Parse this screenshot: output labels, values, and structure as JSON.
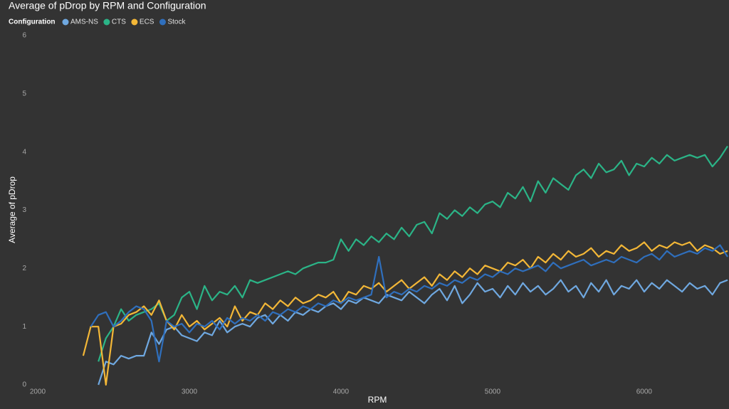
{
  "chart_data": {
    "type": "line",
    "title": "Average of pDrop by RPM and Configuration",
    "legend_title": "Configuration",
    "x_label": "RPM",
    "y_label": "Average of pDrop",
    "xlim": [
      2000,
      6550
    ],
    "xticks": [
      2000,
      3000,
      4000,
      5000,
      6000
    ],
    "ylim": [
      0,
      6
    ],
    "yticks": [
      0,
      1,
      2,
      3,
      4,
      5,
      6
    ],
    "grid": false,
    "x": [
      2300,
      2350,
      2400,
      2450,
      2500,
      2550,
      2600,
      2650,
      2700,
      2750,
      2800,
      2850,
      2900,
      2950,
      3000,
      3050,
      3100,
      3150,
      3200,
      3250,
      3300,
      3350,
      3400,
      3450,
      3500,
      3550,
      3600,
      3650,
      3700,
      3750,
      3800,
      3850,
      3900,
      3950,
      4000,
      4050,
      4100,
      4150,
      4200,
      4250,
      4300,
      4350,
      4400,
      4450,
      4500,
      4550,
      4600,
      4650,
      4700,
      4750,
      4800,
      4850,
      4900,
      4950,
      5000,
      5050,
      5100,
      5150,
      5200,
      5250,
      5300,
      5350,
      5400,
      5450,
      5500,
      5550,
      5600,
      5650,
      5700,
      5750,
      5800,
      5850,
      5900,
      5950,
      6000,
      6050,
      6100,
      6150,
      6200,
      6250,
      6300,
      6350,
      6400,
      6450,
      6500,
      6550
    ],
    "series": [
      {
        "name": "AMS-NS",
        "color": "#6fa8e0",
        "values": [
          null,
          null,
          0.0,
          0.4,
          0.35,
          0.5,
          0.45,
          0.5,
          0.5,
          0.9,
          0.7,
          0.95,
          1.0,
          0.85,
          0.8,
          0.75,
          0.9,
          0.85,
          1.1,
          0.9,
          1.0,
          1.05,
          1.0,
          1.15,
          1.2,
          1.05,
          1.2,
          1.1,
          1.25,
          1.2,
          1.3,
          1.25,
          1.35,
          1.4,
          1.3,
          1.45,
          1.4,
          1.5,
          1.45,
          1.4,
          1.55,
          1.5,
          1.45,
          1.6,
          1.5,
          1.4,
          1.55,
          1.65,
          1.45,
          1.7,
          1.4,
          1.55,
          1.75,
          1.6,
          1.65,
          1.5,
          1.7,
          1.55,
          1.75,
          1.6,
          1.7,
          1.55,
          1.65,
          1.8,
          1.6,
          1.7,
          1.5,
          1.75,
          1.6,
          1.8,
          1.55,
          1.7,
          1.65,
          1.8,
          1.6,
          1.75,
          1.65,
          1.8,
          1.7,
          1.6,
          1.75,
          1.65,
          1.7,
          1.55,
          1.75,
          1.8
        ]
      },
      {
        "name": "CTS",
        "color": "#2bb487",
        "values": [
          null,
          null,
          0.4,
          0.8,
          1.0,
          1.3,
          1.1,
          1.2,
          1.25,
          1.3,
          1.4,
          1.1,
          1.2,
          1.5,
          1.6,
          1.3,
          1.7,
          1.45,
          1.6,
          1.55,
          1.7,
          1.5,
          1.8,
          1.75,
          1.8,
          1.85,
          1.9,
          1.95,
          1.9,
          2.0,
          2.05,
          2.1,
          2.1,
          2.15,
          2.5,
          2.3,
          2.5,
          2.4,
          2.55,
          2.45,
          2.6,
          2.5,
          2.7,
          2.55,
          2.75,
          2.8,
          2.6,
          2.95,
          2.85,
          3.0,
          2.9,
          3.05,
          2.95,
          3.1,
          3.15,
          3.05,
          3.3,
          3.2,
          3.4,
          3.15,
          3.5,
          3.3,
          3.55,
          3.45,
          3.35,
          3.6,
          3.7,
          3.55,
          3.8,
          3.65,
          3.7,
          3.85,
          3.6,
          3.8,
          3.75,
          3.9,
          3.8,
          3.95,
          3.85,
          3.9,
          3.95,
          3.9,
          3.95,
          3.75,
          3.9,
          4.1
        ]
      },
      {
        "name": "ECS",
        "color": "#f3b737",
        "values": [
          0.5,
          1.0,
          1.0,
          0.0,
          1.0,
          1.05,
          1.2,
          1.25,
          1.35,
          1.2,
          1.45,
          1.1,
          0.95,
          1.2,
          1.0,
          1.1,
          0.95,
          1.05,
          1.15,
          1.0,
          1.35,
          1.1,
          1.25,
          1.2,
          1.4,
          1.3,
          1.45,
          1.35,
          1.5,
          1.4,
          1.45,
          1.55,
          1.5,
          1.6,
          1.4,
          1.6,
          1.55,
          1.7,
          1.65,
          1.75,
          1.6,
          1.7,
          1.8,
          1.65,
          1.75,
          1.85,
          1.7,
          1.9,
          1.8,
          1.95,
          1.85,
          2.0,
          1.9,
          2.05,
          2.0,
          1.95,
          2.1,
          2.05,
          2.15,
          2.0,
          2.2,
          2.1,
          2.25,
          2.15,
          2.3,
          2.2,
          2.25,
          2.35,
          2.2,
          2.3,
          2.25,
          2.4,
          2.3,
          2.35,
          2.45,
          2.3,
          2.4,
          2.35,
          2.45,
          2.4,
          2.45,
          2.3,
          2.4,
          2.35,
          2.25,
          2.3
        ]
      },
      {
        "name": "Stock",
        "color": "#2f6fbd",
        "values": [
          null,
          1.0,
          1.2,
          1.25,
          1.0,
          1.1,
          1.25,
          1.35,
          1.3,
          1.1,
          0.4,
          1.1,
          1.0,
          1.05,
          0.9,
          1.05,
          1.0,
          1.1,
          0.95,
          1.15,
          1.05,
          1.15,
          1.1,
          1.2,
          1.1,
          1.25,
          1.2,
          1.3,
          1.25,
          1.35,
          1.3,
          1.4,
          1.35,
          1.45,
          1.4,
          1.5,
          1.45,
          1.5,
          1.55,
          2.2,
          1.5,
          1.6,
          1.55,
          1.65,
          1.6,
          1.7,
          1.65,
          1.75,
          1.7,
          1.8,
          1.75,
          1.85,
          1.8,
          1.9,
          1.85,
          1.95,
          1.9,
          2.0,
          1.95,
          2.0,
          2.05,
          1.95,
          2.1,
          2.0,
          2.05,
          2.1,
          2.15,
          2.05,
          2.1,
          2.15,
          2.1,
          2.2,
          2.15,
          2.1,
          2.2,
          2.25,
          2.15,
          2.3,
          2.2,
          2.25,
          2.3,
          2.25,
          2.35,
          2.3,
          2.4,
          2.2
        ]
      }
    ]
  }
}
